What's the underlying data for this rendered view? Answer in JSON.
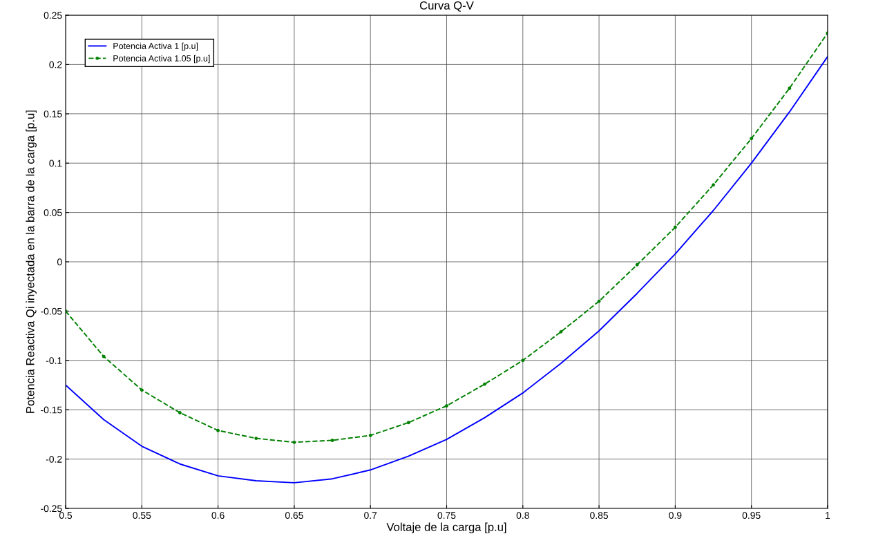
{
  "chart_data": {
    "type": "line",
    "title": "Curva Q-V",
    "xlabel": "Voltaje de la carga [p.u]",
    "ylabel": "Potencia Reactiva Qi inyectada en la barra de la carga [p.u]",
    "x": [
      0.5,
      0.525,
      0.55,
      0.575,
      0.6,
      0.625,
      0.65,
      0.675,
      0.7,
      0.725,
      0.75,
      0.775,
      0.8,
      0.825,
      0.85,
      0.875,
      0.9,
      0.925,
      0.95,
      0.975,
      1.0
    ],
    "series": [
      {
        "name": "Potencia Activa 1 [p.u]",
        "color": "#0000ff",
        "line_style": "solid",
        "marker": "none",
        "values": [
          -0.125,
          -0.16,
          -0.187,
          -0.205,
          -0.217,
          -0.222,
          -0.224,
          -0.22,
          -0.211,
          -0.197,
          -0.18,
          -0.158,
          -0.133,
          -0.103,
          -0.07,
          -0.032,
          0.008,
          0.052,
          0.1,
          0.152,
          0.208
        ]
      },
      {
        "name": "Potencia Activa 1.05 [p.u]",
        "color": "#008000",
        "line_style": "dashed",
        "marker": "circle",
        "values": [
          -0.05,
          -0.096,
          -0.13,
          -0.153,
          -0.171,
          -0.179,
          -0.183,
          -0.181,
          -0.176,
          -0.163,
          -0.146,
          -0.124,
          -0.1,
          -0.071,
          -0.04,
          -0.003,
          0.035,
          0.078,
          0.125,
          0.176,
          0.232
        ]
      }
    ],
    "xlim": [
      0.5,
      1
    ],
    "xticks": [
      0.5,
      0.55,
      0.6,
      0.65,
      0.7,
      0.75,
      0.8,
      0.85,
      0.9,
      0.95,
      1
    ],
    "ylim": [
      -0.25,
      0.25
    ],
    "yticks": [
      -0.25,
      -0.2,
      -0.15,
      -0.1,
      -0.05,
      0,
      0.05,
      0.1,
      0.15,
      0.2,
      0.25
    ],
    "grid": true,
    "legend": "top left"
  }
}
